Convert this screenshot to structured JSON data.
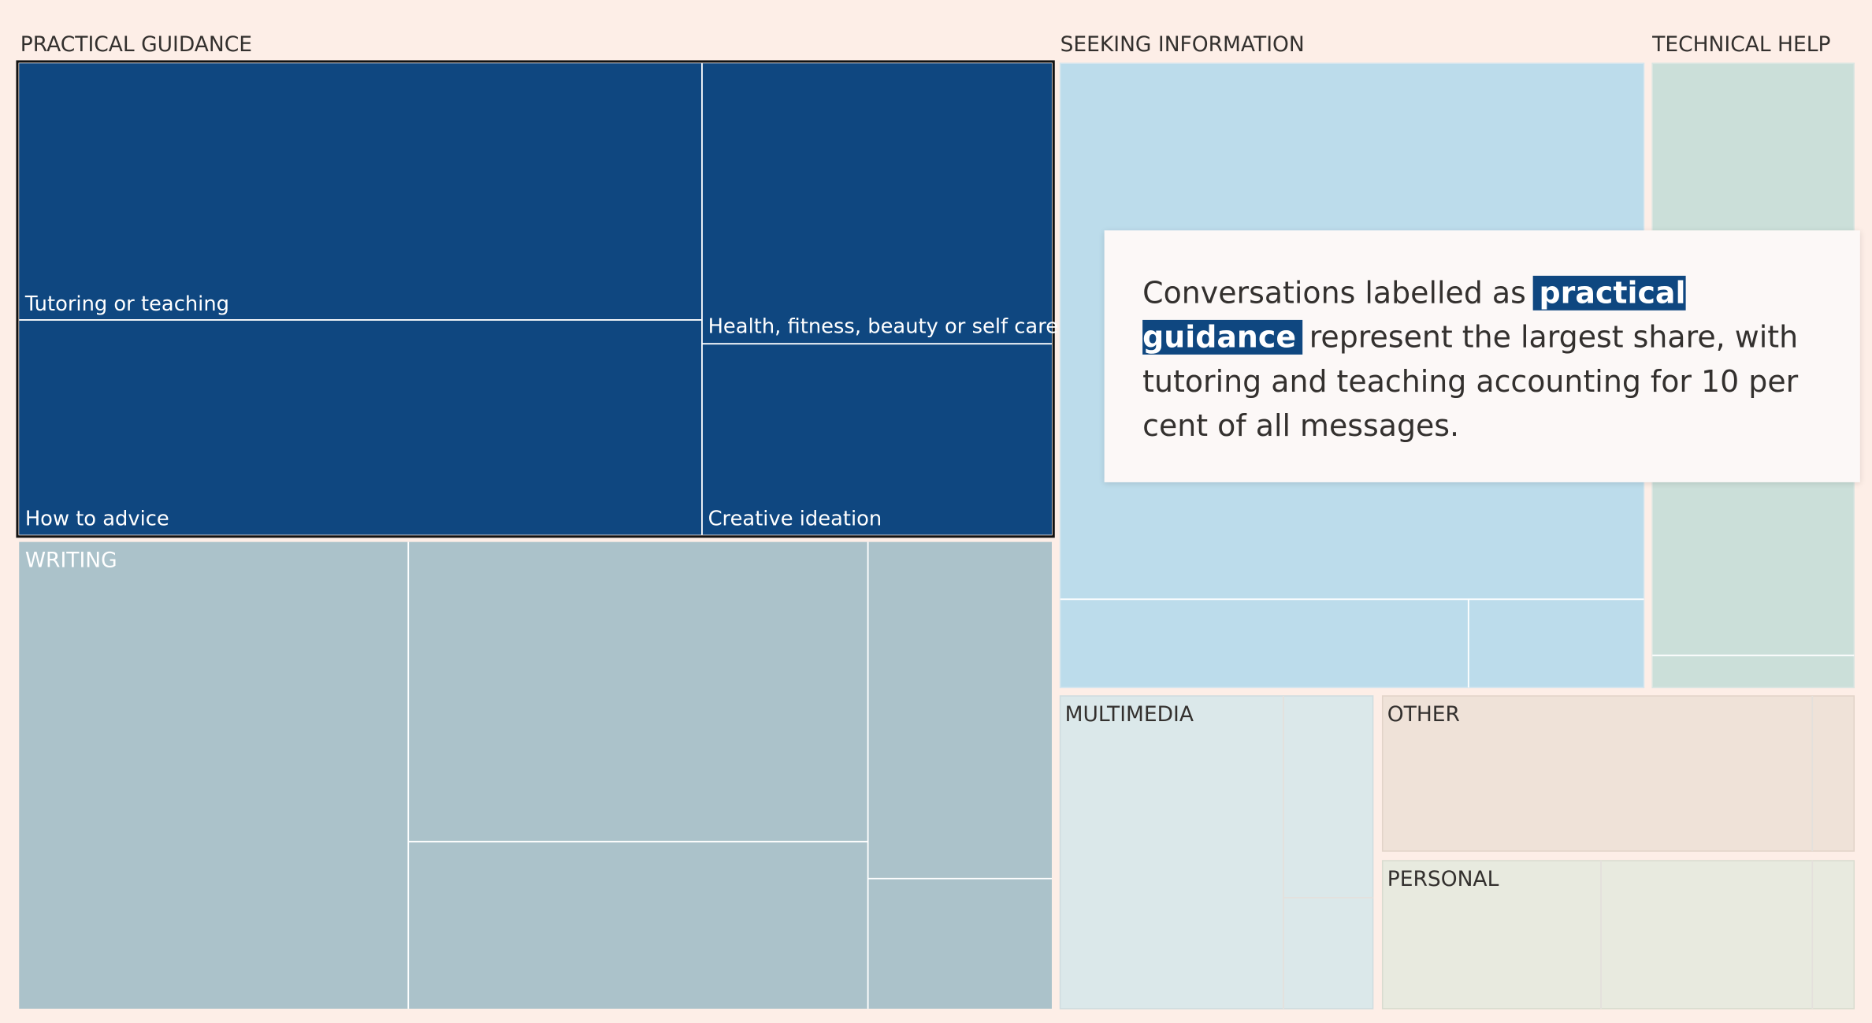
{
  "groups": [
    {
      "label": "PRACTICAL GUIDANCE",
      "items": [
        "Tutoring or teaching",
        "How to advice",
        "Health, fitness, beauty or self care",
        "Creative ideation"
      ]
    },
    {
      "label": "WRITING"
    },
    {
      "label": "SEEKING INFORMATION"
    },
    {
      "label": "TECHNICAL HELP"
    },
    {
      "label": "MULTIMEDIA"
    },
    {
      "label": "OTHER"
    },
    {
      "label": "PERSONAL"
    }
  ],
  "annotation": {
    "before": "Conversations labelled as",
    "highlight": "practical guidance",
    "after": "represent the largest share, with tutoring and teaching accounting for 10 per cent of all messages."
  }
}
